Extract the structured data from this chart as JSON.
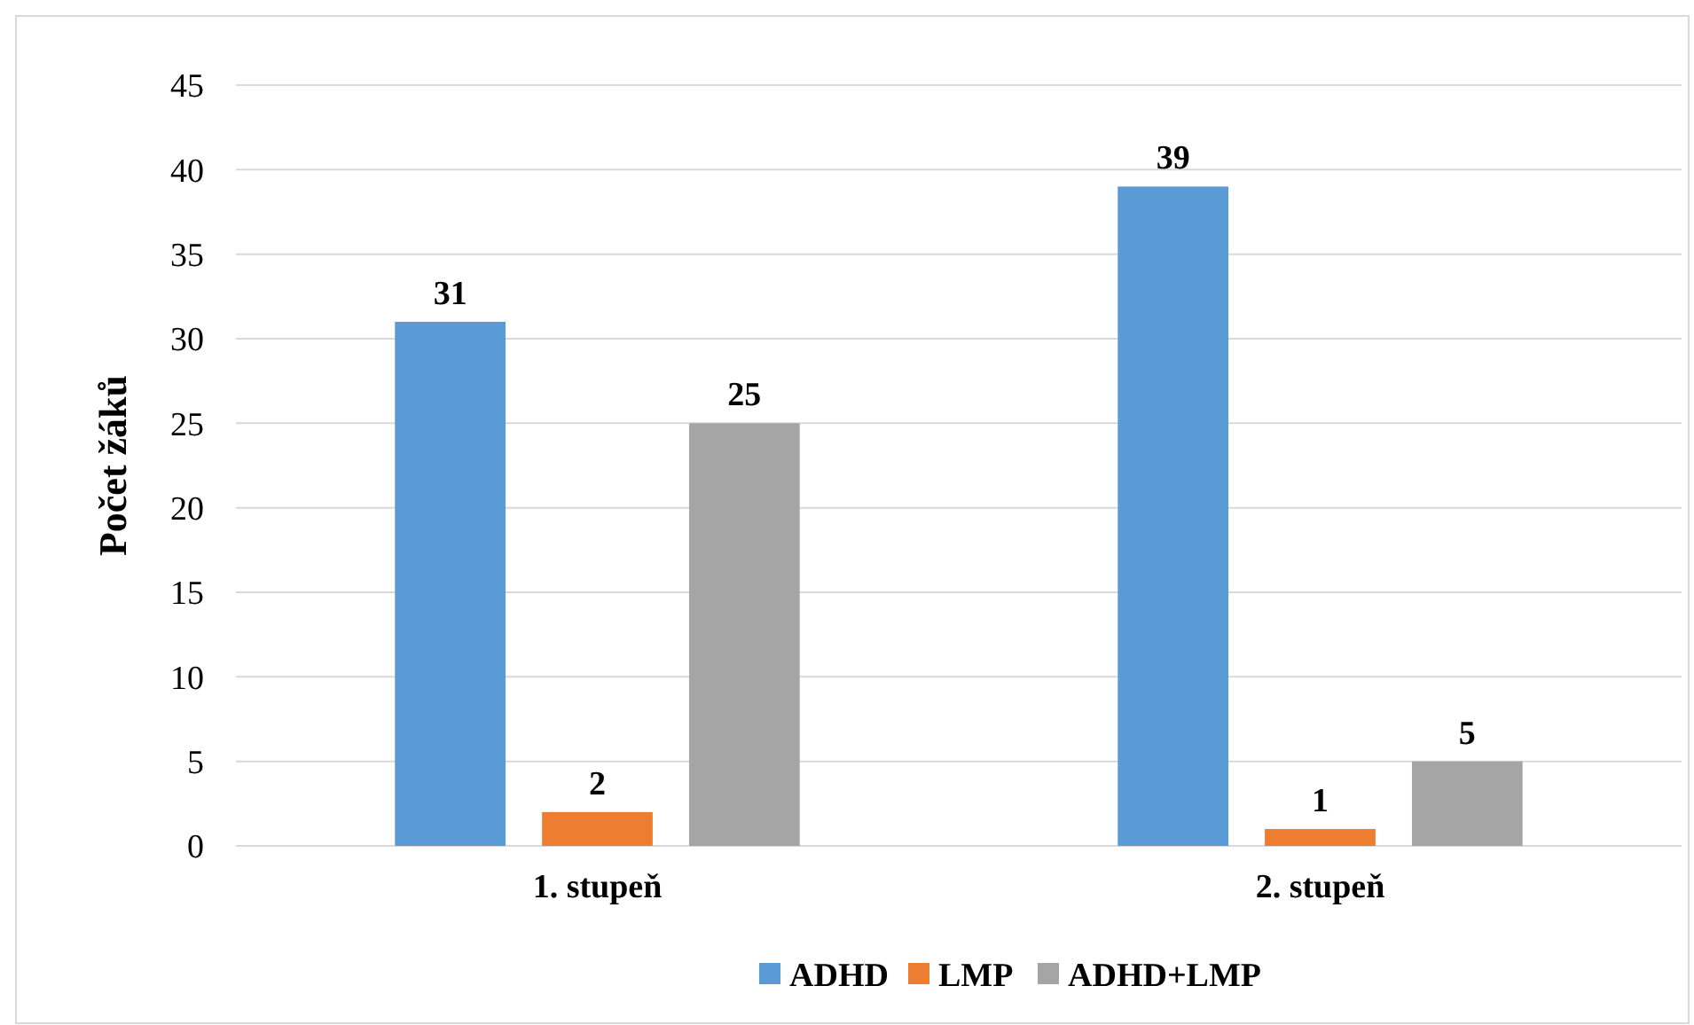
{
  "chart_data": {
    "type": "bar",
    "ylabel": "Počet žáků",
    "categories": [
      "1. stupeň",
      "2. stupeň"
    ],
    "series": [
      {
        "name": "ADHD",
        "color": "#5b9bd5",
        "values": [
          31,
          39
        ]
      },
      {
        "name": "LMP",
        "color": "#ed7d31",
        "values": [
          2,
          1
        ]
      },
      {
        "name": "ADHD+LMP",
        "color": "#a5a5a5",
        "values": [
          25,
          5
        ]
      }
    ],
    "ylim": [
      0,
      45
    ],
    "yticks": [
      0,
      5,
      10,
      15,
      20,
      25,
      30,
      35,
      40,
      45
    ],
    "grid": "y",
    "legend": "bottom",
    "data_labels": true
  }
}
